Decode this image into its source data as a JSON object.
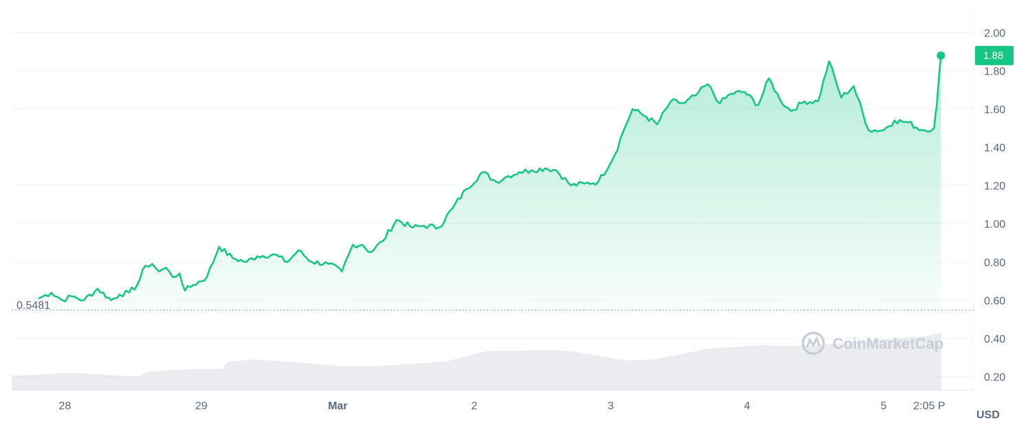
{
  "chart_data": {
    "type": "area",
    "currency_unit": "USD",
    "y_ticks": [
      "0.20",
      "0.40",
      "0.60",
      "0.80",
      "1.00",
      "1.20",
      "1.40",
      "1.60",
      "1.80",
      "2.00"
    ],
    "y_tick_values": [
      0.2,
      0.4,
      0.6,
      0.8,
      1.0,
      1.2,
      1.4,
      1.6,
      1.8,
      2.0
    ],
    "ylim": [
      0.13,
      2.12
    ],
    "x_ticks": [
      {
        "label": "28",
        "t": 0.0,
        "bold": false
      },
      {
        "label": "29",
        "t": 1.0,
        "bold": false
      },
      {
        "label": "Mar",
        "t": 2.0,
        "bold": true
      },
      {
        "label": "2",
        "t": 3.0,
        "bold": false
      },
      {
        "label": "3",
        "t": 4.0,
        "bold": false
      },
      {
        "label": "4",
        "t": 5.0,
        "bold": false
      },
      {
        "label": "5",
        "t": 6.0,
        "bold": false
      },
      {
        "label": "2:05 P",
        "t": 6.42,
        "bold": false
      }
    ],
    "xlim": [
      -0.39,
      6.62
    ],
    "open_price": 0.5481,
    "open_price_label": "0.5481",
    "current_price": 1.88,
    "current_price_label": "1.88",
    "line_color": "#16c784",
    "grid": true,
    "watermark": "CoinMarketCap",
    "price_series": [
      [
        -0.19,
        0.61
      ],
      [
        -0.1,
        0.64
      ],
      [
        -0.02,
        0.6
      ],
      [
        0.05,
        0.62
      ],
      [
        0.14,
        0.6
      ],
      [
        0.24,
        0.66
      ],
      [
        0.34,
        0.6
      ],
      [
        0.4,
        0.63
      ],
      [
        0.47,
        0.64
      ],
      [
        0.53,
        0.68
      ],
      [
        0.59,
        0.78
      ],
      [
        0.64,
        0.79
      ],
      [
        0.69,
        0.75
      ],
      [
        0.74,
        0.77
      ],
      [
        0.79,
        0.72
      ],
      [
        0.84,
        0.74
      ],
      [
        0.88,
        0.65
      ],
      [
        0.94,
        0.68
      ],
      [
        1.04,
        0.72
      ],
      [
        1.13,
        0.88
      ],
      [
        1.23,
        0.82
      ],
      [
        1.33,
        0.8
      ],
      [
        1.41,
        0.83
      ],
      [
        1.53,
        0.84
      ],
      [
        1.63,
        0.8
      ],
      [
        1.71,
        0.86
      ],
      [
        1.81,
        0.8
      ],
      [
        1.93,
        0.79
      ],
      [
        2.03,
        0.75
      ],
      [
        2.11,
        0.89
      ],
      [
        2.18,
        0.89
      ],
      [
        2.24,
        0.85
      ],
      [
        2.33,
        0.91
      ],
      [
        2.43,
        1.02
      ],
      [
        2.55,
        0.98
      ],
      [
        2.63,
        0.99
      ],
      [
        2.74,
        0.98
      ],
      [
        2.84,
        1.08
      ],
      [
        2.94,
        1.18
      ],
      [
        3.06,
        1.27
      ],
      [
        3.16,
        1.22
      ],
      [
        3.25,
        1.25
      ],
      [
        3.33,
        1.27
      ],
      [
        3.42,
        1.28
      ],
      [
        3.52,
        1.29
      ],
      [
        3.6,
        1.28
      ],
      [
        3.71,
        1.2
      ],
      [
        3.81,
        1.21
      ],
      [
        3.91,
        1.22
      ],
      [
        4.03,
        1.36
      ],
      [
        4.09,
        1.48
      ],
      [
        4.16,
        1.6
      ],
      [
        4.26,
        1.56
      ],
      [
        4.34,
        1.52
      ],
      [
        4.44,
        1.64
      ],
      [
        4.54,
        1.63
      ],
      [
        4.62,
        1.67
      ],
      [
        4.71,
        1.73
      ],
      [
        4.8,
        1.63
      ],
      [
        4.88,
        1.68
      ],
      [
        4.98,
        1.69
      ],
      [
        5.08,
        1.62
      ],
      [
        5.16,
        1.76
      ],
      [
        5.24,
        1.65
      ],
      [
        5.32,
        1.59
      ],
      [
        5.42,
        1.64
      ],
      [
        5.52,
        1.64
      ],
      [
        5.6,
        1.85
      ],
      [
        5.69,
        1.66
      ],
      [
        5.78,
        1.72
      ],
      [
        5.89,
        1.49
      ],
      [
        6.0,
        1.49
      ],
      [
        6.08,
        1.54
      ],
      [
        6.18,
        1.53
      ],
      [
        6.28,
        1.49
      ],
      [
        6.37,
        1.5
      ],
      [
        6.39,
        1.62
      ],
      [
        6.42,
        1.88
      ]
    ],
    "volume_series": [
      [
        -0.39,
        0.205
      ],
      [
        -0.2,
        0.21
      ],
      [
        0.0,
        0.22
      ],
      [
        0.2,
        0.215
      ],
      [
        0.4,
        0.205
      ],
      [
        0.55,
        0.2
      ],
      [
        0.6,
        0.225
      ],
      [
        0.8,
        0.235
      ],
      [
        1.0,
        0.24
      ],
      [
        1.15,
        0.24
      ],
      [
        1.2,
        0.28
      ],
      [
        1.4,
        0.29
      ],
      [
        1.6,
        0.28
      ],
      [
        1.8,
        0.27
      ],
      [
        1.95,
        0.26
      ],
      [
        2.05,
        0.255
      ],
      [
        2.2,
        0.255
      ],
      [
        2.4,
        0.26
      ],
      [
        2.6,
        0.27
      ],
      [
        2.8,
        0.28
      ],
      [
        2.95,
        0.31
      ],
      [
        3.1,
        0.335
      ],
      [
        3.3,
        0.335
      ],
      [
        3.5,
        0.34
      ],
      [
        3.7,
        0.335
      ],
      [
        3.9,
        0.31
      ],
      [
        4.1,
        0.285
      ],
      [
        4.3,
        0.29
      ],
      [
        4.5,
        0.315
      ],
      [
        4.7,
        0.345
      ],
      [
        4.9,
        0.355
      ],
      [
        5.1,
        0.365
      ],
      [
        5.3,
        0.36
      ],
      [
        5.5,
        0.365
      ],
      [
        5.7,
        0.375
      ],
      [
        5.9,
        0.39
      ],
      [
        6.1,
        0.4
      ],
      [
        6.3,
        0.41
      ],
      [
        6.42,
        0.43
      ]
    ]
  }
}
